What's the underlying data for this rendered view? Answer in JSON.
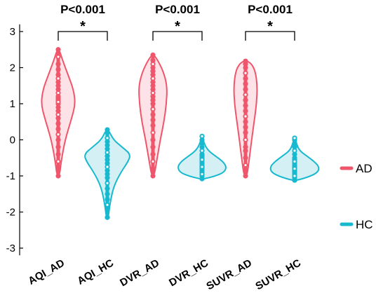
{
  "chart_data": {
    "type": "violin",
    "title": "",
    "xlabel": "",
    "ylabel": "",
    "ylim": [
      -3.2,
      3.2
    ],
    "yticks": [
      3,
      2,
      1,
      0,
      -1,
      -2,
      -3
    ],
    "ytick_labels": [
      "3",
      "2",
      "1",
      "0",
      "-1",
      "-2",
      "-3"
    ],
    "categories": [
      "AQI_AD",
      "AQI_HC",
      "DVR_AD",
      "DVR_HC",
      "SUVR_AD",
      "SUVR_HC"
    ],
    "groups": [
      {
        "name": "AQI_AD",
        "series": "AD",
        "min": -1.0,
        "max": 2.5,
        "profile": [
          [
            -1.0,
            0.05
          ],
          [
            -0.6,
            0.12
          ],
          [
            0.0,
            0.28
          ],
          [
            0.6,
            0.55
          ],
          [
            1.0,
            0.7
          ],
          [
            1.4,
            0.62
          ],
          [
            1.8,
            0.4
          ],
          [
            2.2,
            0.18
          ],
          [
            2.5,
            0.04
          ]
        ],
        "points": [
          -1.0,
          -0.85,
          -0.6,
          -0.4,
          -0.2,
          0.0,
          0.15,
          0.3,
          0.45,
          0.6,
          0.7,
          0.8,
          0.9,
          1.0,
          1.05,
          1.1,
          1.15,
          1.2,
          1.3,
          1.4,
          1.5,
          1.6,
          1.7,
          1.8,
          1.95,
          2.1,
          2.3,
          2.5
        ]
      },
      {
        "name": "AQI_HC",
        "series": "HC",
        "min": -2.15,
        "max": 0.28,
        "profile": [
          [
            -2.15,
            0.04
          ],
          [
            -1.8,
            0.1
          ],
          [
            -1.3,
            0.25
          ],
          [
            -0.9,
            0.55
          ],
          [
            -0.6,
            0.85
          ],
          [
            -0.4,
            0.95
          ],
          [
            -0.2,
            0.6
          ],
          [
            0.0,
            0.25
          ],
          [
            0.28,
            0.04
          ]
        ],
        "points": [
          -2.15,
          -1.95,
          -1.8,
          -1.65,
          -1.5,
          -1.35,
          -1.2,
          -1.05,
          -0.95,
          -0.85,
          -0.75,
          -0.65,
          -0.55,
          -0.45,
          -0.35,
          -0.25,
          -0.15,
          -0.05,
          0.05,
          0.2,
          0.28
        ]
      },
      {
        "name": "DVR_AD",
        "series": "AD",
        "min": -1.0,
        "max": 2.35,
        "profile": [
          [
            -1.0,
            0.05
          ],
          [
            -0.6,
            0.15
          ],
          [
            0.0,
            0.3
          ],
          [
            0.5,
            0.45
          ],
          [
            1.0,
            0.55
          ],
          [
            1.5,
            0.58
          ],
          [
            1.9,
            0.42
          ],
          [
            2.2,
            0.2
          ],
          [
            2.35,
            0.04
          ]
        ],
        "points": [
          -1.0,
          -0.8,
          -0.6,
          -0.4,
          -0.2,
          0.0,
          0.2,
          0.4,
          0.55,
          0.7,
          0.85,
          1.0,
          1.1,
          1.2,
          1.3,
          1.4,
          1.5,
          1.6,
          1.7,
          1.8,
          1.9,
          2.0,
          2.1,
          2.2,
          2.35
        ]
      },
      {
        "name": "DVR_HC",
        "series": "HC",
        "min": -1.08,
        "max": 0.1,
        "profile": [
          [
            -1.08,
            0.1
          ],
          [
            -1.0,
            0.55
          ],
          [
            -0.9,
            0.9
          ],
          [
            -0.75,
            1.0
          ],
          [
            -0.6,
            0.85
          ],
          [
            -0.45,
            0.55
          ],
          [
            -0.3,
            0.25
          ],
          [
            -0.1,
            0.08
          ],
          [
            0.1,
            0.03
          ]
        ],
        "points": [
          -1.08,
          -1.0,
          -0.95,
          -0.9,
          -0.85,
          -0.8,
          -0.75,
          -0.7,
          -0.65,
          -0.6,
          -0.55,
          -0.5,
          -0.45,
          -0.4,
          -0.3,
          -0.2,
          -0.1,
          0.0,
          0.1
        ]
      },
      {
        "name": "SUVR_AD",
        "series": "AD",
        "min": -1.0,
        "max": 2.18,
        "profile": [
          [
            -1.0,
            0.06
          ],
          [
            -0.6,
            0.14
          ],
          [
            0.0,
            0.25
          ],
          [
            0.5,
            0.35
          ],
          [
            1.0,
            0.45
          ],
          [
            1.5,
            0.48
          ],
          [
            1.9,
            0.4
          ],
          [
            2.1,
            0.25
          ],
          [
            2.18,
            0.08
          ]
        ],
        "points": [
          -1.0,
          -0.85,
          -0.7,
          -0.5,
          -0.3,
          -0.2,
          0.0,
          0.2,
          0.35,
          0.5,
          0.65,
          0.8,
          0.95,
          1.1,
          1.25,
          1.4,
          1.55,
          1.7,
          1.85,
          2.0,
          2.1,
          2.18
        ]
      },
      {
        "name": "SUVR_HC",
        "series": "HC",
        "min": -1.12,
        "max": 0.05,
        "profile": [
          [
            -1.12,
            0.1
          ],
          [
            -1.02,
            0.6
          ],
          [
            -0.9,
            0.95
          ],
          [
            -0.75,
            1.0
          ],
          [
            -0.6,
            0.8
          ],
          [
            -0.45,
            0.5
          ],
          [
            -0.3,
            0.2
          ],
          [
            -0.1,
            0.07
          ],
          [
            0.05,
            0.03
          ]
        ],
        "points": [
          -1.12,
          -1.05,
          -1.0,
          -0.95,
          -0.9,
          -0.85,
          -0.8,
          -0.75,
          -0.7,
          -0.65,
          -0.6,
          -0.55,
          -0.5,
          -0.4,
          -0.3,
          -0.2,
          -0.1,
          0.0,
          0.05
        ]
      }
    ],
    "comparisons": [
      {
        "from": "AQI_AD",
        "to": "AQI_HC",
        "p_label": "P<0.001",
        "star": "*"
      },
      {
        "from": "DVR_AD",
        "to": "DVR_HC",
        "p_label": "P<0.001",
        "star": "*"
      },
      {
        "from": "SUVR_AD",
        "to": "SUVR_HC",
        "p_label": "P<0.001",
        "star": "*"
      }
    ],
    "legend": {
      "placement": "right",
      "entries": [
        {
          "label": "AD",
          "color": "#f0566b"
        },
        {
          "label": "HC",
          "color": "#17b9cf"
        }
      ]
    },
    "colors": {
      "AD": {
        "stroke": "#f0566b",
        "fill": "#fde3e7"
      },
      "HC": {
        "stroke": "#17b9cf",
        "fill": "#d4f0f5"
      }
    },
    "grid": false
  }
}
